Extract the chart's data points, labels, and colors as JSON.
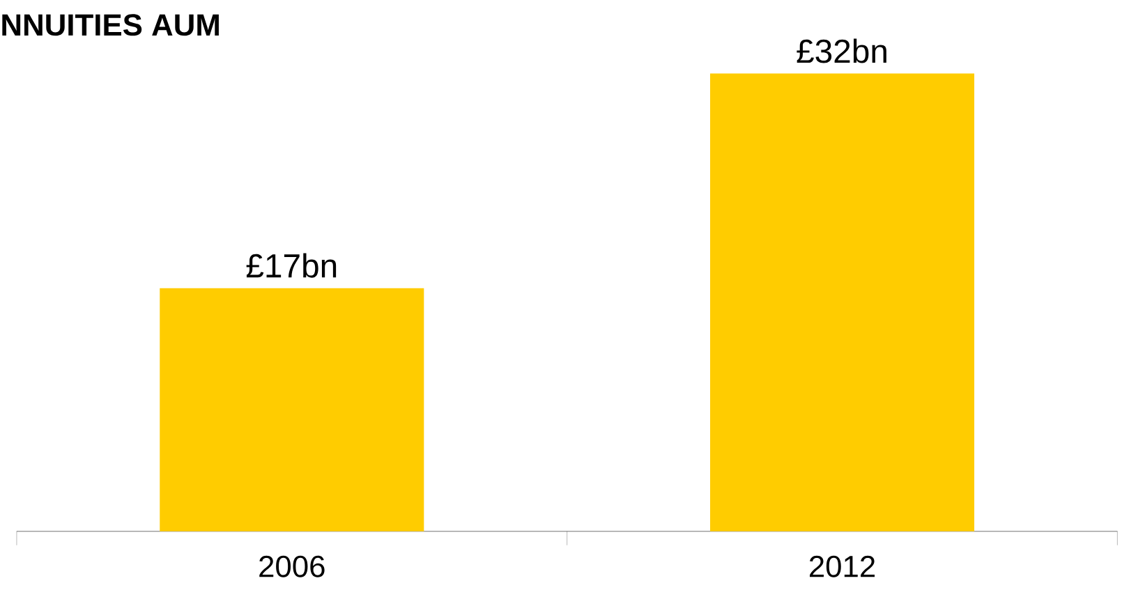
{
  "chart_data": {
    "type": "bar",
    "title": "NNUITIES AUM",
    "categories": [
      "2006",
      "2012"
    ],
    "values": [
      17,
      32
    ],
    "color": "#ffcc00",
    "value_labels": [
      "£17bn",
      "£32bn"
    ]
  }
}
